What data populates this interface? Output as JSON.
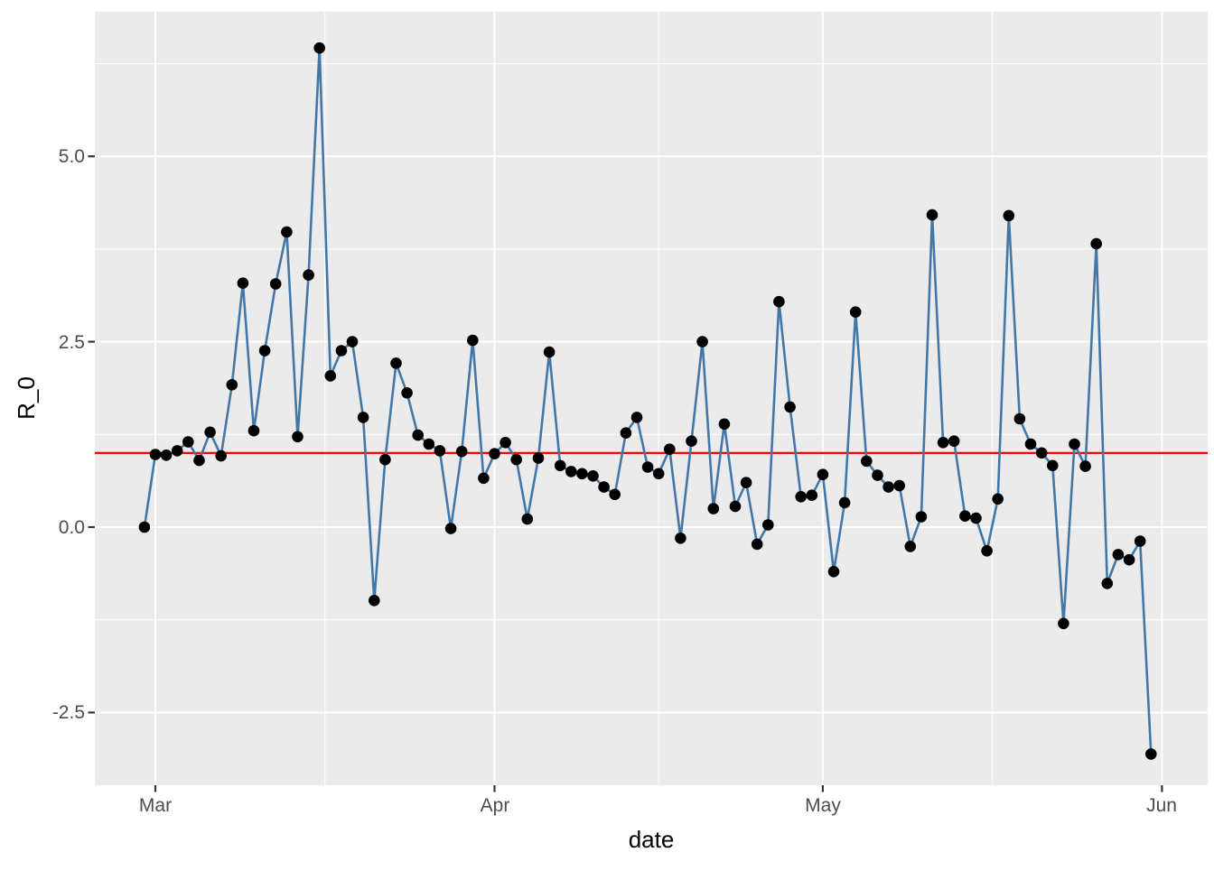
{
  "chart_data": {
    "type": "line",
    "title": "",
    "xlabel": "date",
    "ylabel": "R_0",
    "legend": "none",
    "grid": "on",
    "panel_background": "#EBEBEB",
    "grid_color": "#FFFFFF",
    "line_color": "#4178A8",
    "point_color": "#000000",
    "tick_label_color": "#4D4D4D",
    "axis_title_color": "#000000",
    "tick_mark_color": "#333333",
    "reference_line": {
      "value": 1.0,
      "color": "#FF0000"
    },
    "x_axis": {
      "tick_labels": [
        "Mar",
        "Apr",
        "May",
        "Jun"
      ],
      "tick_day_offsets_from_mar1": [
        0,
        31,
        61,
        92
      ],
      "minor_gridlines": "midpoints_between_major"
    },
    "y_axis": {
      "tick_labels": [
        "5.0",
        "2.5",
        "0.0",
        "-2.5"
      ],
      "tick_values": [
        5.0,
        2.5,
        0.0,
        -2.5
      ],
      "minor_tick_values": [
        6.25,
        3.75,
        1.25,
        -1.25
      ],
      "shown_range": [
        -3.45,
        6.95
      ]
    },
    "first_point_day_offset_from_mar1": -1,
    "dates": [
      "Feb 29",
      "Mar 1",
      "Mar 2",
      "Mar 3",
      "Mar 4",
      "Mar 5",
      "Mar 6",
      "Mar 7",
      "Mar 8",
      "Mar 9",
      "Mar 10",
      "Mar 11",
      "Mar 12",
      "Mar 13",
      "Mar 14",
      "Mar 15",
      "Mar 16",
      "Mar 17",
      "Mar 18",
      "Mar 19",
      "Mar 20",
      "Mar 21",
      "Mar 22",
      "Mar 23",
      "Mar 24",
      "Mar 25",
      "Mar 26",
      "Mar 27",
      "Mar 28",
      "Mar 29",
      "Mar 30",
      "Mar 31",
      "Apr 1",
      "Apr 2",
      "Apr 3",
      "Apr 4",
      "Apr 5",
      "Apr 6",
      "Apr 7",
      "Apr 8",
      "Apr 9",
      "Apr 10",
      "Apr 11",
      "Apr 12",
      "Apr 13",
      "Apr 14",
      "Apr 15",
      "Apr 16",
      "Apr 17",
      "Apr 18",
      "Apr 19",
      "Apr 20",
      "Apr 21",
      "Apr 22",
      "Apr 23",
      "Apr 24",
      "Apr 25",
      "Apr 26",
      "Apr 27",
      "Apr 28",
      "Apr 29",
      "Apr 30",
      "May 1",
      "May 2",
      "May 3",
      "May 4",
      "May 5",
      "May 6",
      "May 7",
      "May 8",
      "May 9",
      "May 10",
      "May 11",
      "May 12",
      "May 13",
      "May 14",
      "May 15",
      "May 16",
      "May 17",
      "May 18",
      "May 19",
      "May 20",
      "May 21",
      "May 22",
      "May 23",
      "May 24",
      "May 25",
      "May 26",
      "May 27",
      "May 28",
      "May 29",
      "May 30",
      "May 31"
    ],
    "values": [
      0.0,
      0.98,
      0.97,
      1.03,
      1.15,
      0.9,
      1.28,
      0.96,
      1.92,
      3.29,
      1.3,
      2.38,
      3.28,
      3.98,
      1.22,
      3.4,
      6.46,
      2.04,
      2.38,
      2.5,
      1.48,
      -0.99,
      0.91,
      2.21,
      1.81,
      1.24,
      1.12,
      1.03,
      -0.02,
      1.02,
      2.52,
      0.66,
      0.99,
      1.14,
      0.91,
      0.11,
      0.93,
      2.36,
      0.83,
      0.75,
      0.72,
      0.69,
      0.54,
      0.44,
      1.27,
      1.48,
      0.81,
      0.72,
      1.05,
      -0.15,
      1.16,
      2.5,
      0.25,
      1.39,
      0.28,
      0.6,
      -0.23,
      0.03,
      3.04,
      1.62,
      0.41,
      0.43,
      0.71,
      -0.6,
      0.33,
      2.9,
      0.89,
      0.7,
      0.54,
      0.56,
      -0.26,
      0.14,
      4.21,
      1.14,
      1.16,
      0.15,
      0.12,
      -0.32,
      0.38,
      4.2,
      1.46,
      1.12,
      1.0,
      0.83,
      -1.3,
      1.12,
      0.82,
      3.82,
      -0.76,
      -0.37,
      -0.44,
      -0.19,
      -3.06
    ]
  }
}
